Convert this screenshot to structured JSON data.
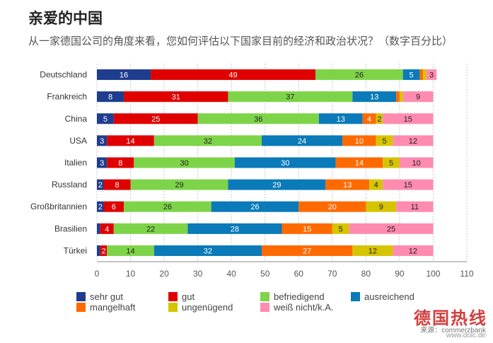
{
  "title": "亲爱的中国",
  "subtitle": "从一家德国公司的角度来看，您如何评估以下国家目前的经济和政治状况？（数字百分比）",
  "source": "来源：commerzbank",
  "site": "www.dolc.de",
  "watermark": "德国热线",
  "colors": {
    "sehr_gut": "#1f3d8f",
    "gut": "#e00000",
    "befriedigend": "#7ed448",
    "ausreichend": "#0a7ab8",
    "mangelhaft": "#ff6a00",
    "ungenuegend": "#d6c400",
    "weiss_nicht": "#ff8bb0"
  },
  "legend": [
    {
      "label": "sehr gut",
      "color": "#1f3d8f"
    },
    {
      "label": "gut",
      "color": "#e00000"
    },
    {
      "label": "befriedigend",
      "color": "#7ed448"
    },
    {
      "label": "ausreichend",
      "color": "#0a7ab8"
    },
    {
      "label": "mangelhaft",
      "color": "#ff6a00"
    },
    {
      "label": "ungenügend",
      "color": "#d6c400"
    },
    {
      "label": "weiß nicht/k.A.",
      "color": "#ff8bb0"
    }
  ],
  "chart_data": {
    "type": "bar",
    "orientation": "horizontal",
    "stacked": true,
    "title": "亲爱的中国",
    "categories": [
      "Deutschland",
      "Frankreich",
      "China",
      "USA",
      "Italien",
      "Russland",
      "Großbritannien",
      "Brasilien",
      "Türkei"
    ],
    "series": [
      {
        "name": "sehr gut",
        "color": "#1f3d8f",
        "values": [
          16,
          8,
          5,
          3,
          3,
          2,
          2,
          1,
          1
        ]
      },
      {
        "name": "gut",
        "color": "#e00000",
        "values": [
          49,
          31,
          25,
          14,
          8,
          8,
          6,
          4,
          2
        ]
      },
      {
        "name": "befriedigend",
        "color": "#7ed448",
        "values": [
          26,
          37,
          36,
          32,
          30,
          29,
          26,
          22,
          14
        ]
      },
      {
        "name": "ausreichend",
        "color": "#0a7ab8",
        "values": [
          5,
          13,
          13,
          24,
          30,
          29,
          26,
          28,
          32
        ]
      },
      {
        "name": "mangelhaft",
        "color": "#ff6a00",
        "values": [
          1,
          1,
          4,
          10,
          14,
          13,
          20,
          15,
          27
        ]
      },
      {
        "name": "ungenügend",
        "color": "#d6c400",
        "values": [
          1,
          1,
          2,
          5,
          5,
          4,
          9,
          5,
          12
        ]
      },
      {
        "name": "weiß nicht/k.A.",
        "color": "#ff8bb0",
        "values": [
          3,
          9,
          15,
          12,
          10,
          15,
          11,
          25,
          12
        ]
      }
    ],
    "xticks": [
      0,
      10,
      20,
      30,
      40,
      50,
      60,
      70,
      80,
      90,
      100,
      110
    ],
    "xlim": [
      0,
      110
    ],
    "grid": true
  }
}
